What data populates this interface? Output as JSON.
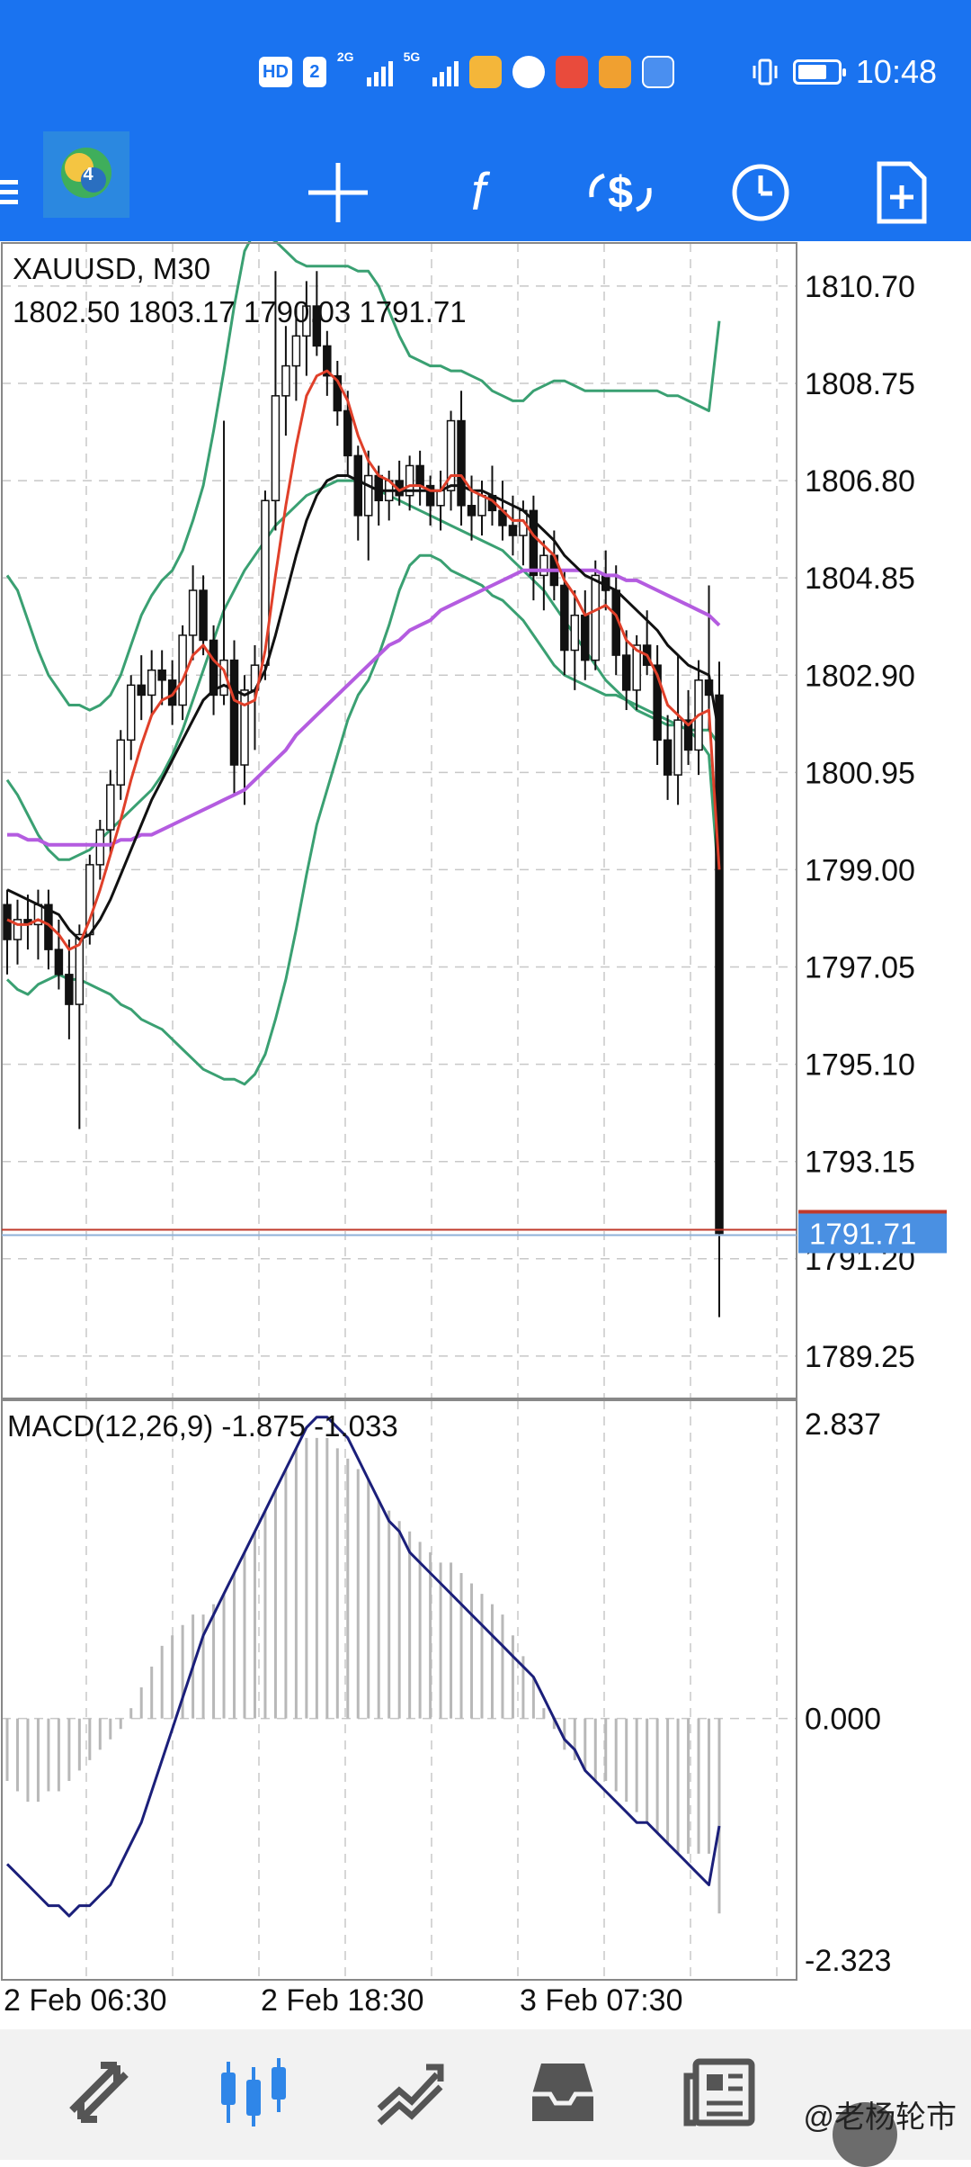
{
  "status_bar": {
    "hd_label": "HD",
    "sim_label": "2",
    "net1": "2G",
    "net2": "5G",
    "time": "10:48",
    "battery_level": 0.75
  },
  "toolbar": {
    "icons": [
      "mt4-logo-icon",
      "crosshair-icon",
      "indicators-f-icon",
      "trade-dollar-icon",
      "clock-period-icon",
      "new-document-icon"
    ]
  },
  "colors": {
    "app_blue": "#1a73f0",
    "bollinger": "#3aa072",
    "ma_fast": "#e0402a",
    "ma_slow": "#111111",
    "ma_long": "#b45ce0",
    "macd_signal": "#1b1f7a",
    "bid_line": "#c0392b",
    "price_label_bg": "#4a90e2"
  },
  "chart_data": [
    {
      "type": "candlestick",
      "symbol_label": "XAUUSD, M30",
      "ohlc_label": "1802.50 1803.17 1790.03 1791.71",
      "y_ticks": [
        "1810.70",
        "1808.75",
        "1806.80",
        "1804.85",
        "1802.90",
        "1800.95",
        "1799.00",
        "1797.05",
        "1795.10",
        "1793.15",
        "1791.20",
        "1789.25"
      ],
      "ylim": [
        1788.4,
        1811.6
      ],
      "current_price": 1791.71,
      "current_price_label": "1791.71",
      "x_ticks": [
        "2 Feb 06:30",
        "2 Feb 18:30",
        "3 Feb 07:30"
      ],
      "ohlc": [
        [
          1798.3,
          1798.6,
          1796.9,
          1797.6
        ],
        [
          1797.6,
          1798.4,
          1797.1,
          1798.0
        ],
        [
          1798.0,
          1798.5,
          1797.4,
          1797.9
        ],
        [
          1797.9,
          1798.6,
          1797.2,
          1798.3
        ],
        [
          1798.3,
          1798.6,
          1797.0,
          1797.4
        ],
        [
          1797.4,
          1798.0,
          1796.6,
          1796.9
        ],
        [
          1796.9,
          1797.6,
          1795.6,
          1796.3
        ],
        [
          1796.3,
          1797.9,
          1793.8,
          1797.7
        ],
        [
          1797.7,
          1799.3,
          1797.5,
          1799.1
        ],
        [
          1799.1,
          1800.0,
          1798.8,
          1799.8
        ],
        [
          1799.8,
          1801.0,
          1799.3,
          1800.7
        ],
        [
          1800.7,
          1801.8,
          1800.4,
          1801.6
        ],
        [
          1801.6,
          1802.9,
          1801.2,
          1802.7
        ],
        [
          1802.7,
          1803.3,
          1802.0,
          1802.5
        ],
        [
          1802.5,
          1803.4,
          1802.1,
          1803.0
        ],
        [
          1803.0,
          1803.4,
          1802.3,
          1802.8
        ],
        [
          1802.8,
          1803.2,
          1801.9,
          1802.3
        ],
        [
          1802.3,
          1803.9,
          1802.0,
          1803.7
        ],
        [
          1803.7,
          1805.1,
          1803.2,
          1804.6
        ],
        [
          1804.6,
          1804.9,
          1803.3,
          1803.6
        ],
        [
          1803.6,
          1803.9,
          1802.1,
          1802.5
        ],
        [
          1802.5,
          1808.0,
          1802.3,
          1803.2
        ],
        [
          1803.2,
          1803.6,
          1800.5,
          1801.1
        ],
        [
          1801.1,
          1802.9,
          1800.3,
          1802.6
        ],
        [
          1802.6,
          1803.5,
          1801.4,
          1803.1
        ],
        [
          1803.1,
          1806.6,
          1802.8,
          1806.4
        ],
        [
          1806.4,
          1811.0,
          1805.8,
          1808.5
        ],
        [
          1808.5,
          1809.9,
          1807.7,
          1809.1
        ],
        [
          1809.1,
          1810.3,
          1808.4,
          1809.7
        ],
        [
          1809.7,
          1810.8,
          1808.9,
          1810.3
        ],
        [
          1810.3,
          1811.0,
          1809.3,
          1809.5
        ],
        [
          1809.5,
          1809.8,
          1808.5,
          1808.9
        ],
        [
          1808.9,
          1809.2,
          1807.9,
          1808.2
        ],
        [
          1808.2,
          1808.6,
          1806.9,
          1807.3
        ],
        [
          1807.3,
          1807.5,
          1805.6,
          1806.1
        ],
        [
          1806.1,
          1807.4,
          1805.2,
          1806.9
        ],
        [
          1806.9,
          1807.1,
          1805.9,
          1806.4
        ],
        [
          1806.4,
          1807.0,
          1806.0,
          1806.8
        ],
        [
          1806.8,
          1807.2,
          1806.3,
          1806.5
        ],
        [
          1806.5,
          1807.3,
          1806.2,
          1807.1
        ],
        [
          1807.1,
          1807.4,
          1806.3,
          1806.7
        ],
        [
          1806.7,
          1806.9,
          1805.9,
          1806.3
        ],
        [
          1806.3,
          1807.0,
          1805.8,
          1806.6
        ],
        [
          1806.6,
          1808.2,
          1806.2,
          1808.0
        ],
        [
          1808.0,
          1808.6,
          1805.9,
          1806.3
        ],
        [
          1806.3,
          1806.9,
          1805.6,
          1806.1
        ],
        [
          1806.1,
          1806.8,
          1805.7,
          1806.5
        ],
        [
          1806.5,
          1807.1,
          1805.9,
          1806.2
        ],
        [
          1806.2,
          1806.8,
          1805.6,
          1805.9
        ],
        [
          1805.9,
          1806.5,
          1805.3,
          1805.7
        ],
        [
          1805.7,
          1806.4,
          1805.1,
          1806.2
        ],
        [
          1806.2,
          1806.5,
          1804.4,
          1804.9
        ],
        [
          1804.9,
          1805.6,
          1804.2,
          1805.3
        ],
        [
          1805.3,
          1805.8,
          1804.4,
          1804.7
        ],
        [
          1804.7,
          1805.0,
          1802.9,
          1803.4
        ],
        [
          1803.4,
          1804.6,
          1802.6,
          1804.1
        ],
        [
          1804.1,
          1804.6,
          1802.8,
          1803.2
        ],
        [
          1803.2,
          1805.2,
          1803.0,
          1804.9
        ],
        [
          1804.9,
          1805.4,
          1804.2,
          1804.6
        ],
        [
          1804.6,
          1805.1,
          1802.9,
          1803.3
        ],
        [
          1803.3,
          1803.8,
          1802.2,
          1802.6
        ],
        [
          1802.6,
          1803.7,
          1802.2,
          1803.5
        ],
        [
          1803.5,
          1804.2,
          1802.9,
          1803.1
        ],
        [
          1803.1,
          1803.5,
          1801.1,
          1801.6
        ],
        [
          1801.6,
          1802.1,
          1800.4,
          1800.9
        ],
        [
          1800.9,
          1803.3,
          1800.3,
          1802.0
        ],
        [
          1802.0,
          1802.6,
          1801.1,
          1801.4
        ],
        [
          1801.4,
          1803.2,
          1800.9,
          1802.8
        ],
        [
          1802.8,
          1804.7,
          1801.8,
          1802.5
        ],
        [
          1802.5,
          1803.17,
          1790.03,
          1791.71
        ]
      ],
      "series": [
        {
          "name": "",
          "role": "ma_fast",
          "values": [
            1798.0,
            1797.9,
            1797.9,
            1798.0,
            1797.9,
            1797.7,
            1797.4,
            1797.5,
            1798.0,
            1798.6,
            1799.3,
            1800.0,
            1800.8,
            1801.5,
            1802.1,
            1802.4,
            1802.5,
            1802.8,
            1803.3,
            1803.5,
            1803.2,
            1803.0,
            1802.4,
            1802.3,
            1802.4,
            1803.4,
            1804.9,
            1806.3,
            1807.5,
            1808.5,
            1808.9,
            1809.0,
            1808.8,
            1808.4,
            1807.7,
            1807.2,
            1806.9,
            1806.8,
            1806.6,
            1806.7,
            1806.7,
            1806.6,
            1806.6,
            1806.9,
            1806.9,
            1806.6,
            1806.5,
            1806.4,
            1806.2,
            1806.0,
            1806.0,
            1805.7,
            1805.5,
            1805.3,
            1804.8,
            1804.5,
            1804.1,
            1804.2,
            1804.3,
            1804.1,
            1803.6,
            1803.4,
            1803.3,
            1802.9,
            1802.3,
            1802.1,
            1801.9,
            1802.1,
            1802.2,
            1799.0
          ]
        },
        {
          "name": "",
          "role": "ma_slow",
          "values": [
            1798.6,
            1798.5,
            1798.4,
            1798.3,
            1798.2,
            1798.1,
            1797.8,
            1797.6,
            1797.7,
            1798.0,
            1798.4,
            1798.9,
            1799.4,
            1799.9,
            1800.4,
            1800.8,
            1801.2,
            1801.6,
            1802.0,
            1802.4,
            1802.6,
            1802.7,
            1802.6,
            1802.5,
            1802.6,
            1803.0,
            1803.7,
            1804.5,
            1805.3,
            1806.0,
            1806.5,
            1806.8,
            1806.9,
            1806.9,
            1806.8,
            1806.7,
            1806.6,
            1806.6,
            1806.6,
            1806.6,
            1806.6,
            1806.6,
            1806.6,
            1806.7,
            1806.7,
            1806.6,
            1806.6,
            1806.5,
            1806.4,
            1806.3,
            1806.2,
            1806.0,
            1805.8,
            1805.6,
            1805.3,
            1805.1,
            1804.9,
            1804.8,
            1804.7,
            1804.6,
            1804.4,
            1804.2,
            1804.0,
            1803.8,
            1803.5,
            1803.3,
            1803.1,
            1803.0,
            1802.9,
            1801.7
          ]
        },
        {
          "name": "",
          "role": "ma_long",
          "values": [
            1799.7,
            1799.7,
            1799.6,
            1799.6,
            1799.5,
            1799.5,
            1799.5,
            1799.5,
            1799.5,
            1799.5,
            1799.5,
            1799.6,
            1799.6,
            1799.7,
            1799.7,
            1799.8,
            1799.9,
            1800.0,
            1800.1,
            1800.2,
            1800.3,
            1800.4,
            1800.5,
            1800.6,
            1800.8,
            1801.0,
            1801.2,
            1801.4,
            1801.7,
            1801.9,
            1802.1,
            1802.3,
            1802.5,
            1802.7,
            1802.9,
            1803.1,
            1803.3,
            1803.5,
            1803.6,
            1803.8,
            1803.9,
            1804.0,
            1804.2,
            1804.3,
            1804.4,
            1804.5,
            1804.6,
            1804.7,
            1804.8,
            1804.9,
            1805.0,
            1805.0,
            1805.0,
            1805.0,
            1805.0,
            1805.0,
            1805.0,
            1805.0,
            1804.9,
            1804.9,
            1804.8,
            1804.8,
            1804.7,
            1804.6,
            1804.5,
            1804.4,
            1804.3,
            1804.2,
            1804.1,
            1803.9
          ]
        },
        {
          "name": "",
          "role": "boll_upper",
          "values": [
            1804.9,
            1804.6,
            1804.0,
            1803.4,
            1802.9,
            1802.6,
            1802.3,
            1802.3,
            1802.2,
            1802.3,
            1802.5,
            1802.9,
            1803.5,
            1804.1,
            1804.5,
            1804.8,
            1805.0,
            1805.4,
            1806.0,
            1806.7,
            1807.8,
            1809.0,
            1810.3,
            1811.4,
            1811.8,
            1811.7,
            1811.6,
            1811.4,
            1811.2,
            1811.1,
            1811.1,
            1811.1,
            1811.1,
            1811.1,
            1811.0,
            1811.0,
            1810.7,
            1810.2,
            1809.7,
            1809.3,
            1809.2,
            1809.1,
            1809.1,
            1809.0,
            1809.0,
            1808.9,
            1808.8,
            1808.6,
            1808.5,
            1808.4,
            1808.4,
            1808.6,
            1808.7,
            1808.8,
            1808.8,
            1808.7,
            1808.6,
            1808.6,
            1808.6,
            1808.6,
            1808.6,
            1808.6,
            1808.6,
            1808.6,
            1808.5,
            1808.5,
            1808.4,
            1808.3,
            1808.2,
            1810.0
          ]
        },
        {
          "name": "",
          "role": "boll_mid",
          "values": [
            1800.8,
            1800.5,
            1800.1,
            1799.7,
            1799.4,
            1799.2,
            1799.2,
            1799.3,
            1799.4,
            1799.6,
            1799.8,
            1800.0,
            1800.2,
            1800.4,
            1800.6,
            1800.9,
            1801.3,
            1801.8,
            1802.4,
            1803.0,
            1803.6,
            1804.2,
            1804.6,
            1805.0,
            1805.3,
            1805.6,
            1805.9,
            1806.1,
            1806.3,
            1806.5,
            1806.6,
            1806.7,
            1806.8,
            1806.8,
            1806.8,
            1806.7,
            1806.6,
            1806.5,
            1806.4,
            1806.3,
            1806.2,
            1806.1,
            1806.0,
            1805.9,
            1805.8,
            1805.7,
            1805.6,
            1805.5,
            1805.4,
            1805.2,
            1805.0,
            1804.8,
            1804.6,
            1804.3,
            1804.0,
            1803.7,
            1803.4,
            1803.1,
            1802.8,
            1802.6,
            1802.4,
            1802.2,
            1802.1,
            1802.0,
            1801.9,
            1801.9,
            1801.8,
            1801.8,
            1801.8,
            1801.5
          ]
        },
        {
          "name": "",
          "role": "boll_lower",
          "values": [
            1796.8,
            1796.6,
            1796.5,
            1796.7,
            1796.8,
            1796.9,
            1796.8,
            1796.8,
            1796.7,
            1796.6,
            1796.5,
            1796.3,
            1796.2,
            1796.0,
            1795.9,
            1795.8,
            1795.6,
            1795.4,
            1795.2,
            1795.0,
            1794.9,
            1794.8,
            1794.8,
            1794.7,
            1794.9,
            1795.3,
            1796.0,
            1796.8,
            1797.8,
            1798.9,
            1799.9,
            1800.6,
            1801.3,
            1802.0,
            1802.5,
            1802.8,
            1803.3,
            1803.9,
            1804.6,
            1805.1,
            1805.3,
            1805.3,
            1805.2,
            1805.0,
            1804.9,
            1804.8,
            1804.7,
            1804.5,
            1804.4,
            1804.2,
            1804.0,
            1803.7,
            1803.4,
            1803.1,
            1802.9,
            1802.8,
            1802.7,
            1802.6,
            1802.5,
            1802.5,
            1802.4,
            1802.3,
            1802.2,
            1802.1,
            1802.0,
            1801.9,
            1801.8,
            1801.6,
            1801.3,
            1798.6
          ]
        }
      ]
    },
    {
      "type": "bar",
      "label": "MACD(12,26,9) -1.875 -1.033",
      "y_ticks": [
        "2.837",
        "0.000",
        "-2.323"
      ],
      "ylim": [
        -2.323,
        2.837
      ],
      "series": [
        {
          "name": "",
          "role": "macd_histogram",
          "values": [
            -0.6,
            -0.7,
            -0.8,
            -0.8,
            -0.7,
            -0.7,
            -0.6,
            -0.5,
            -0.4,
            -0.3,
            -0.2,
            -0.1,
            0.1,
            0.3,
            0.5,
            0.7,
            0.8,
            0.9,
            1.0,
            1.0,
            1.1,
            1.2,
            1.4,
            1.6,
            1.8,
            2.0,
            2.2,
            2.4,
            2.6,
            2.7,
            2.7,
            2.7,
            2.6,
            2.5,
            2.4,
            2.3,
            2.1,
            2.0,
            1.9,
            1.8,
            1.7,
            1.6,
            1.5,
            1.5,
            1.4,
            1.3,
            1.2,
            1.1,
            1.0,
            0.8,
            0.6,
            0.4,
            0.1,
            -0.1,
            -0.3,
            -0.4,
            -0.5,
            -0.6,
            -0.6,
            -0.7,
            -0.8,
            -0.9,
            -1.0,
            -1.1,
            -1.2,
            -1.3,
            -1.3,
            -1.3,
            -1.3,
            -1.875
          ]
        },
        {
          "name": "",
          "role": "macd_signal",
          "values": [
            -1.4,
            -1.5,
            -1.6,
            -1.7,
            -1.8,
            -1.8,
            -1.9,
            -1.8,
            -1.8,
            -1.7,
            -1.6,
            -1.4,
            -1.2,
            -1.0,
            -0.7,
            -0.4,
            -0.1,
            0.2,
            0.5,
            0.8,
            1.0,
            1.2,
            1.4,
            1.6,
            1.8,
            2.0,
            2.2,
            2.4,
            2.6,
            2.8,
            2.9,
            2.9,
            2.8,
            2.7,
            2.5,
            2.3,
            2.1,
            1.9,
            1.8,
            1.6,
            1.5,
            1.4,
            1.3,
            1.2,
            1.1,
            1.0,
            0.9,
            0.8,
            0.7,
            0.6,
            0.5,
            0.4,
            0.2,
            0.0,
            -0.2,
            -0.3,
            -0.5,
            -0.6,
            -0.7,
            -0.8,
            -0.9,
            -1.0,
            -1.0,
            -1.1,
            -1.2,
            -1.3,
            -1.4,
            -1.5,
            -1.6,
            -1.033
          ]
        }
      ]
    }
  ],
  "bottom_nav": {
    "items": [
      "quotes-icon",
      "chart-icon",
      "trade-icon",
      "history-icon",
      "news-icon"
    ],
    "watermark": "@老杨轮市"
  }
}
